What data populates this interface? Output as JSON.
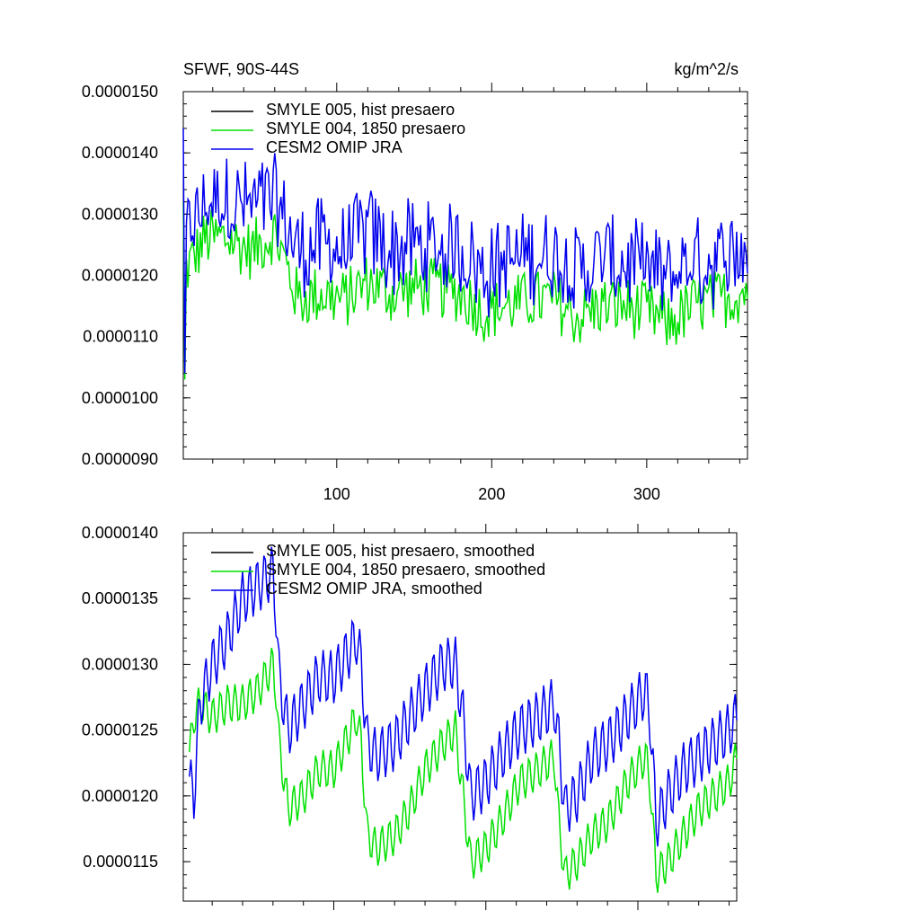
{
  "chart_data": [
    {
      "type": "line",
      "title": "SFWF, 90S-44S",
      "units": "kg/m^2/s",
      "xlim": [
        1,
        365
      ],
      "ylim": [
        9e-06,
        1.5e-05
      ],
      "x_ticks": [
        100,
        200,
        300
      ],
      "x_tick_labels": [
        "100",
        "200",
        "300"
      ],
      "y_ticks": [
        9e-06,
        1e-05,
        1.1e-05,
        1.2e-05,
        1.3e-05,
        1.4e-05,
        1.5e-05
      ],
      "y_tick_labels": [
        "0.0000090",
        "0.0000100",
        "0.0000110",
        "0.0000120",
        "0.0000130",
        "0.0000140",
        "0.0000150"
      ],
      "legend_position": "top-left",
      "series": [
        {
          "name": "SMYLE 005, hist presaero",
          "color": "#000000"
        },
        {
          "name": "SMYLE 004, 1850 presaero",
          "color": "#00e000"
        },
        {
          "name": "CESM2 OMIP JRA",
          "color": "#0000ee"
        }
      ],
      "x": [
        1,
        15,
        30,
        45,
        60,
        75,
        90,
        105,
        120,
        135,
        150,
        165,
        180,
        195,
        210,
        225,
        240,
        255,
        270,
        285,
        300,
        315,
        330,
        345,
        360,
        365
      ],
      "noise_amplitude": [
        5e-07,
        8e-07
      ],
      "baseline_values": {
        "SMYLE 004, 1850 presaero": [
          1.2e-05,
          1.26e-05,
          1.26e-05,
          1.24e-05,
          1.27e-05,
          1.16e-05,
          1.17e-05,
          1.16e-05,
          1.19e-05,
          1.17e-05,
          1.18e-05,
          1.18e-05,
          1.17e-05,
          1.14e-05,
          1.15e-05,
          1.16e-05,
          1.16e-05,
          1.13e-05,
          1.15e-05,
          1.15e-05,
          1.14e-05,
          1.12e-05,
          1.15e-05,
          1.16e-05,
          1.17e-05,
          1.18e-05
        ],
        "CESM2 OMIP JRA": [
          1.25e-05,
          1.31e-05,
          1.32e-05,
          1.31e-05,
          1.32e-05,
          1.24e-05,
          1.25e-05,
          1.24e-05,
          1.27e-05,
          1.24e-05,
          1.25e-05,
          1.24e-05,
          1.24e-05,
          1.2e-05,
          1.22e-05,
          1.23e-05,
          1.23e-05,
          1.2e-05,
          1.22e-05,
          1.22e-05,
          1.21e-05,
          1.19e-05,
          1.22e-05,
          1.22e-05,
          1.24e-05,
          1.24e-05
        ]
      }
    },
    {
      "type": "line",
      "title": "",
      "xlim": [
        1,
        365
      ],
      "ylim": [
        1.12e-05,
        1.4e-05
      ],
      "x_ticks": [
        100,
        200,
        300
      ],
      "y_ticks": [
        1.15e-05,
        1.2e-05,
        1.25e-05,
        1.3e-05,
        1.35e-05,
        1.4e-05
      ],
      "y_tick_labels": [
        "0.0000115",
        "0.0000120",
        "0.0000125",
        "0.0000130",
        "0.0000135",
        "0.0000140"
      ],
      "legend_position": "top-left",
      "series": [
        {
          "name": "SMYLE 005, hist presaero, smoothed",
          "color": "#000000"
        },
        {
          "name": "SMYLE 004, 1850 presaero, smoothed",
          "color": "#00e000"
        },
        {
          "name": "CESM2 OMIP JRA, smoothed",
          "color": "#0000ee"
        }
      ],
      "x": [
        5,
        8,
        12,
        20,
        30,
        40,
        50,
        60,
        62,
        64,
        70,
        80,
        90,
        100,
        115,
        118,
        122,
        128,
        140,
        150,
        160,
        172,
        180,
        185,
        190,
        200,
        210,
        222,
        235,
        245,
        248,
        252,
        260,
        270,
        280,
        293,
        305,
        308,
        312,
        320,
        330,
        340,
        350,
        360,
        365
      ],
      "values_green": [
        1.23e-05,
        1.26e-05,
        1.27e-05,
        1.26e-05,
        1.27e-05,
        1.27e-05,
        1.28e-05,
        1.3e-05,
        1.28e-05,
        1.24e-05,
        1.19e-05,
        1.2e-05,
        1.22e-05,
        1.22e-05,
        1.26e-05,
        1.24e-05,
        1.17e-05,
        1.16e-05,
        1.17e-05,
        1.19e-05,
        1.22e-05,
        1.24e-05,
        1.25e-05,
        1.2e-05,
        1.15e-05,
        1.16e-05,
        1.18e-05,
        1.21e-05,
        1.22e-05,
        1.23e-05,
        1.18e-05,
        1.14e-05,
        1.15e-05,
        1.17e-05,
        1.18e-05,
        1.21e-05,
        1.23e-05,
        1.21e-05,
        1.14e-05,
        1.15e-05,
        1.17e-05,
        1.19e-05,
        1.2e-05,
        1.21e-05,
        1.23e-05
      ],
      "values_blue": [
        1.21e-05,
        1.2e-05,
        1.27e-05,
        1.3e-05,
        1.32e-05,
        1.35e-05,
        1.36e-05,
        1.37e-05,
        1.34e-05,
        1.29e-05,
        1.25e-05,
        1.27e-05,
        1.29e-05,
        1.29e-05,
        1.32e-05,
        1.3e-05,
        1.24e-05,
        1.23e-05,
        1.24e-05,
        1.26e-05,
        1.28e-05,
        1.3e-05,
        1.3e-05,
        1.26e-05,
        1.2e-05,
        1.21e-05,
        1.23e-05,
        1.25e-05,
        1.26e-05,
        1.27e-05,
        1.24e-05,
        1.19e-05,
        1.2e-05,
        1.23e-05,
        1.24e-05,
        1.26e-05,
        1.28e-05,
        1.26e-05,
        1.18e-05,
        1.2e-05,
        1.22e-05,
        1.23e-05,
        1.24e-05,
        1.25e-05,
        1.26e-05
      ]
    }
  ]
}
